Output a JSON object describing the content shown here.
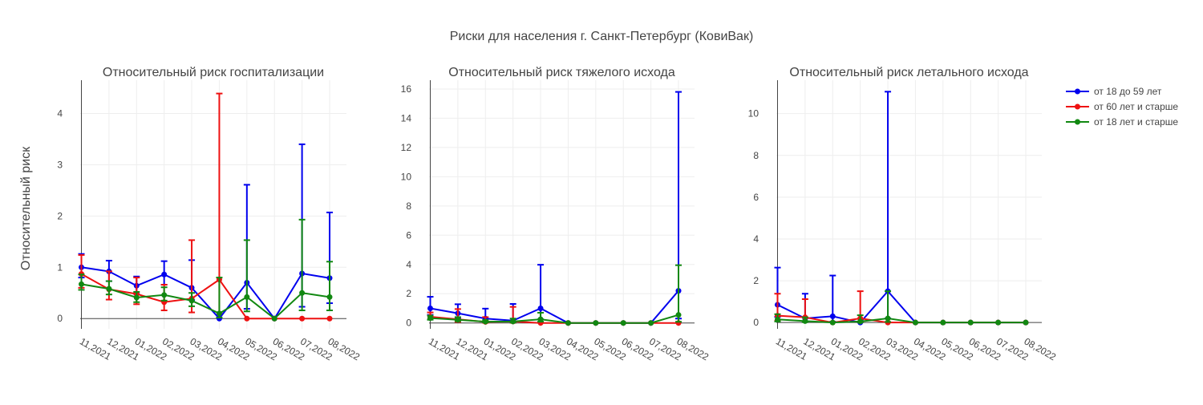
{
  "chart_data": {
    "type": "line",
    "title": "Риски для населения г. Санкт-Петербург (КовиВак)",
    "ylabel": "Относительный риск",
    "categories": [
      "11,2021",
      "12,2021",
      "01,2022",
      "02,2022",
      "03,2022",
      "04,2022",
      "05,2022",
      "06,2022",
      "07,2022",
      "08,2022"
    ],
    "colors": {
      "from18to59": "#0000ee",
      "from60": "#ee1111",
      "from18": "#118811"
    },
    "legend": [
      {
        "key": "from18to59",
        "label": "от 18 до 59 лет"
      },
      {
        "key": "from60",
        "label": "от 60 лет и старше"
      },
      {
        "key": "from18",
        "label": "от 18 лет и старше"
      }
    ],
    "legend_position": "top-right",
    "grid": true,
    "panels": [
      {
        "title": "Относительный риск госпитализации",
        "ylim": [
          -0.2,
          4.65
        ],
        "yticks": [
          0,
          1,
          2,
          3,
          4
        ],
        "series": [
          {
            "key": "from18to59",
            "values": [
              1.0,
              0.92,
              0.64,
              0.86,
              0.6,
              0.0,
              0.7,
              0.0,
              0.88,
              0.79
            ],
            "upper": [
              1.26,
              1.13,
              0.82,
              1.12,
              1.14,
              null,
              2.61,
              null,
              3.4,
              2.07
            ],
            "lower": [
              0.8,
              0.73,
              0.48,
              0.66,
              0.36,
              null,
              0.19,
              null,
              0.23,
              0.3
            ]
          },
          {
            "key": "from60",
            "values": [
              0.87,
              0.57,
              0.48,
              0.32,
              0.39,
              0.76,
              0.0,
              0.0,
              0.0,
              0.0
            ],
            "upper": [
              1.24,
              0.92,
              0.8,
              0.66,
              1.53,
              4.39,
              null,
              null,
              null,
              null
            ],
            "lower": [
              0.6,
              0.37,
              0.28,
              0.16,
              0.12,
              0.12,
              null,
              null,
              null,
              null
            ]
          },
          {
            "key": "from18",
            "values": [
              0.67,
              0.58,
              0.41,
              0.46,
              0.35,
              0.1,
              0.42,
              0.0,
              0.5,
              0.42
            ],
            "upper": [
              0.86,
              0.73,
              0.52,
              0.61,
              0.5,
              0.8,
              1.53,
              null,
              1.93,
              1.11
            ],
            "lower": [
              0.56,
              0.47,
              0.32,
              0.35,
              0.24,
              0.02,
              0.14,
              null,
              0.16,
              0.16
            ]
          }
        ]
      },
      {
        "title": "Относительный риск тяжелого исхода",
        "ylim": [
          -0.4,
          16.6
        ],
        "yticks": [
          0,
          2,
          4,
          6,
          8,
          10,
          12,
          14,
          16
        ],
        "series": [
          {
            "key": "from18to59",
            "values": [
              1.0,
              0.66,
              0.3,
              0.16,
              1.0,
              0.0,
              0.0,
              0.0,
              0.0,
              2.2
            ],
            "upper": [
              1.79,
              1.28,
              0.98,
              1.3,
              3.98,
              null,
              null,
              null,
              null,
              15.8
            ],
            "lower": [
              0.55,
              0.33,
              0.09,
              0.02,
              0.25,
              null,
              null,
              null,
              null,
              0.3
            ]
          },
          {
            "key": "from60",
            "values": [
              0.42,
              0.25,
              0.07,
              0.1,
              0.0,
              0.0,
              0.0,
              0.0,
              0.0,
              0.0
            ],
            "upper": [
              0.72,
              0.95,
              0.4,
              1.1,
              null,
              null,
              null,
              null,
              null,
              null
            ],
            "lower": [
              0.24,
              0.07,
              0.01,
              0.01,
              null,
              null,
              null,
              null,
              null,
              null
            ]
          },
          {
            "key": "from18",
            "values": [
              0.33,
              0.22,
              0.09,
              0.1,
              0.25,
              0.0,
              0.0,
              0.0,
              0.0,
              0.55
            ],
            "upper": [
              0.5,
              0.4,
              0.2,
              0.3,
              0.7,
              null,
              null,
              null,
              null,
              3.95
            ],
            "lower": [
              0.22,
              0.12,
              0.04,
              0.03,
              0.09,
              null,
              null,
              null,
              null,
              0.08
            ]
          }
        ]
      },
      {
        "title": "Относительный риск летального исхода",
        "ylim": [
          -0.3,
          11.6
        ],
        "yticks": [
          0,
          2,
          4,
          6,
          8,
          10
        ],
        "series": [
          {
            "key": "from18to59",
            "values": [
              0.85,
              0.2,
              0.3,
              0.0,
              1.5,
              0.0,
              0.0,
              0.0,
              0.0,
              0.0
            ],
            "upper": [
              2.63,
              1.38,
              2.25,
              null,
              11.05,
              null,
              null,
              null,
              null,
              null
            ],
            "lower": [
              0.27,
              0.03,
              0.04,
              null,
              0.2,
              null,
              null,
              null,
              null,
              null
            ]
          },
          {
            "key": "from60",
            "values": [
              0.33,
              0.25,
              0.0,
              0.2,
              0.0,
              0.0,
              0.0,
              0.0,
              0.0,
              0.0
            ],
            "upper": [
              1.38,
              1.12,
              null,
              1.5,
              null,
              null,
              null,
              null,
              null,
              null
            ],
            "lower": [
              0.08,
              0.05,
              null,
              0.03,
              null,
              null,
              null,
              null,
              null,
              null
            ]
          },
          {
            "key": "from18",
            "values": [
              0.15,
              0.07,
              0.0,
              0.05,
              0.2,
              0.0,
              0.0,
              0.0,
              0.0,
              0.0
            ],
            "upper": [
              0.4,
              0.25,
              null,
              0.35,
              1.5,
              null,
              null,
              null,
              null,
              null
            ],
            "lower": [
              0.05,
              0.02,
              null,
              0.01,
              0.03,
              null,
              null,
              null,
              null,
              null
            ]
          }
        ]
      }
    ]
  }
}
